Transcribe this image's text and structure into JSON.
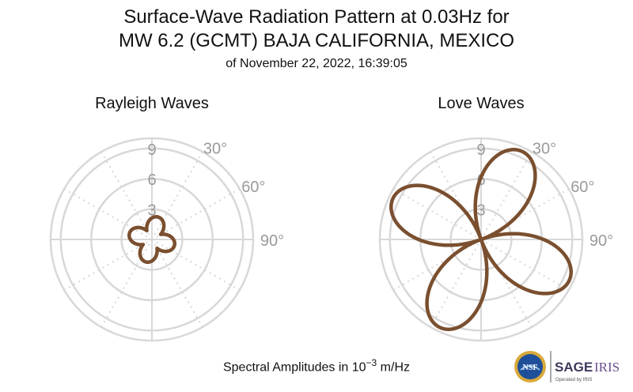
{
  "header": {
    "title_line1": "Surface-Wave Radiation Pattern at 0.03Hz for",
    "title_line2": "MW 6.2 (GCMT) BAJA CALIFORNIA, MEXICO",
    "subtitle": "of November 22, 2022, 16:39:05"
  },
  "footer": {
    "label_prefix": "Spectral Amplitudes in ",
    "label_base": "10",
    "label_exp": "−3",
    "label_suffix": " m/Hz"
  },
  "logos": {
    "nsf_text": "NSF",
    "sage_text": "SAGE",
    "iris_text": "IRIS",
    "operated_text": "Operated by IRIS"
  },
  "chart_data": [
    {
      "type": "polar",
      "title": "Rayleigh Waves",
      "radial_ticks": [
        3,
        6,
        9
      ],
      "radial_max": 10,
      "angle_labels": [
        "30°",
        "60°",
        "90°"
      ],
      "line_color": "#7a4f2f",
      "grid_color": "#d8d8d8",
      "pattern": {
        "kind": "four-lobe",
        "peak": 2.3,
        "trough": 1.0,
        "rotation_deg": 15
      }
    },
    {
      "type": "polar",
      "title": "Love Waves",
      "radial_ticks": [
        3,
        6,
        9
      ],
      "radial_max": 10,
      "angle_labels": [
        "30°",
        "60°",
        "90°"
      ],
      "line_color": "#7a4f2f",
      "grid_color": "#d8d8d8",
      "pattern": {
        "kind": "four-lobe-nodal",
        "peak": 9.6,
        "rotation_deg": 25
      }
    }
  ]
}
